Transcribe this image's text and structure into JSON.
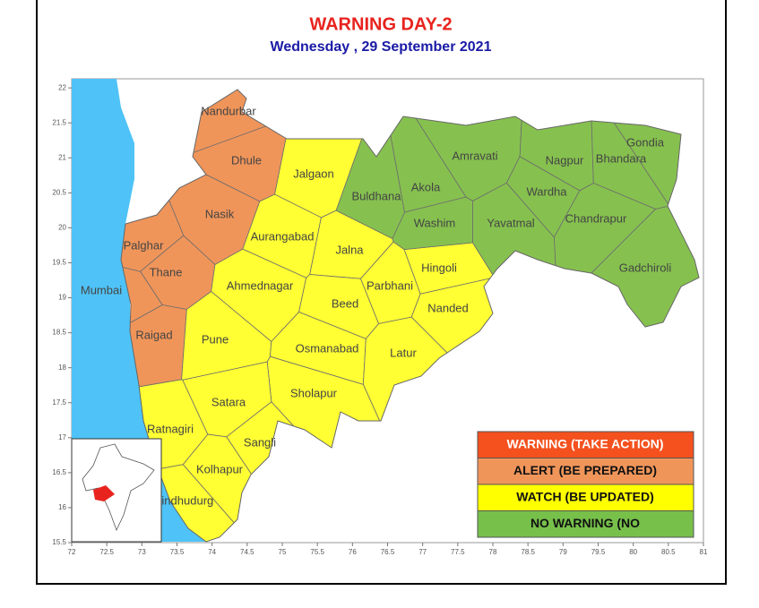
{
  "header": {
    "title": "WARNING  DAY-2",
    "subtitle": "Wednesday ,  29 September 2021"
  },
  "map": {
    "xlim": [
      72,
      81
    ],
    "ylim": [
      15.5,
      22.13
    ],
    "xticks": [
      72,
      72.5,
      73,
      73.5,
      74,
      74.5,
      75,
      75.5,
      76,
      76.5,
      77,
      77.5,
      78,
      78.5,
      79,
      79.5,
      80,
      80.5,
      81
    ],
    "yticks": [
      15.5,
      16,
      16.5,
      17,
      17.5,
      18,
      18.5,
      19,
      19.5,
      20,
      20.5,
      21,
      21.5,
      22
    ],
    "districts": [
      {
        "name": "Nandurbar",
        "color": "#f0955a"
      },
      {
        "name": "Dhule",
        "color": "#f0955a"
      },
      {
        "name": "Nasik",
        "color": "#f0955a"
      },
      {
        "name": "Palghar",
        "color": "#f0955a"
      },
      {
        "name": "Thane",
        "color": "#f0955a"
      },
      {
        "name": "Raigad",
        "color": "#f0955a"
      },
      {
        "name": "Mumbai",
        "color": "#f0955a"
      },
      {
        "name": "Jalgaon",
        "color": "#ffff33"
      },
      {
        "name": "Aurangabad",
        "color": "#ffff33"
      },
      {
        "name": "Jalna",
        "color": "#ffff33"
      },
      {
        "name": "Ahmednagar",
        "color": "#ffff33"
      },
      {
        "name": "Pune",
        "color": "#ffff33"
      },
      {
        "name": "Beed",
        "color": "#ffff33"
      },
      {
        "name": "Parbhani",
        "color": "#ffff33"
      },
      {
        "name": "Hingoli",
        "color": "#ffff33"
      },
      {
        "name": "Nanded",
        "color": "#ffff33"
      },
      {
        "name": "Osmanabad",
        "color": "#ffff33"
      },
      {
        "name": "Latur",
        "color": "#ffff33"
      },
      {
        "name": "Sholapur",
        "color": "#ffff33"
      },
      {
        "name": "Satara",
        "color": "#ffff33"
      },
      {
        "name": "Sangli",
        "color": "#ffff33"
      },
      {
        "name": "Kolhapur",
        "color": "#ffff33"
      },
      {
        "name": "Ratnagiri",
        "color": "#ffff33"
      },
      {
        "name": "Sindhudurg",
        "color": "#ffff33"
      },
      {
        "name": "Buldhana",
        "color": "#86c14f"
      },
      {
        "name": "Akola",
        "color": "#86c14f"
      },
      {
        "name": "Amravati",
        "color": "#86c14f"
      },
      {
        "name": "Washim",
        "color": "#86c14f"
      },
      {
        "name": "Yavatmal",
        "color": "#86c14f"
      },
      {
        "name": "Wardha",
        "color": "#86c14f"
      },
      {
        "name": "Nagpur",
        "color": "#86c14f"
      },
      {
        "name": "Bhandara",
        "color": "#86c14f"
      },
      {
        "name": "Gondia",
        "color": "#86c14f"
      },
      {
        "name": "Chandrapur",
        "color": "#86c14f"
      },
      {
        "name": "Gadchiroli",
        "color": "#86c14f"
      }
    ],
    "legend": [
      {
        "label": "WARNING (TAKE ACTION)",
        "color": "#f4511e"
      },
      {
        "label": "ALERT (BE PREPARED)",
        "color": "#f0955a"
      },
      {
        "label": "WATCH (BE UPDATED)",
        "color": "#ffff00"
      },
      {
        "label": "NO WARNING (NO",
        "color": "#77c04a"
      }
    ]
  }
}
